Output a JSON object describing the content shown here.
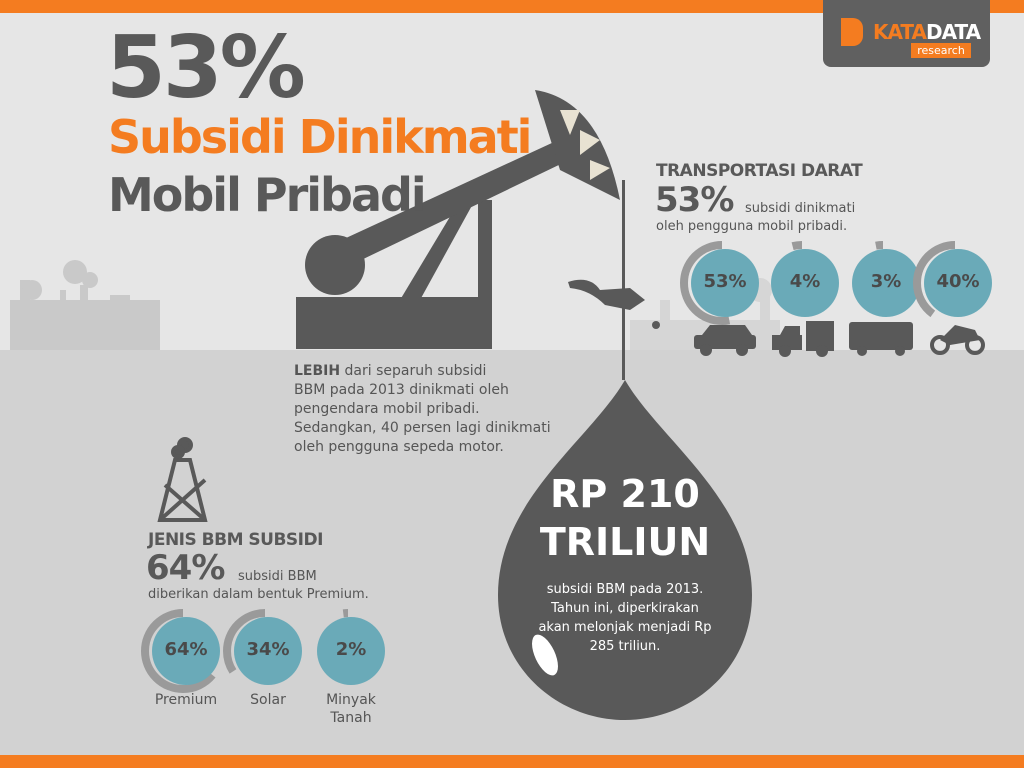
{
  "colors": {
    "orange": "#f47c20",
    "dark": "#595959",
    "teal": "#6aaab8",
    "ring": "#9a9a9a"
  },
  "logo": {
    "brand_a": "KATA",
    "brand_b": "DATA",
    "sub": "research"
  },
  "headline": {
    "percent": "53%",
    "line1": "Subsidi Dinikmati",
    "line2": "Mobil Pribadi"
  },
  "transport": {
    "title": "TRANSPORTASI DARAT",
    "percent": "53%",
    "desc1": "subsidi dinikmati",
    "desc2": "oleh pengguna mobil pribadi.",
    "items": [
      {
        "label": "53%",
        "value": 53,
        "icon": "car-icon"
      },
      {
        "label": "4%",
        "value": 4,
        "icon": "truck-icon"
      },
      {
        "label": "3%",
        "value": 3,
        "icon": "bus-icon"
      },
      {
        "label": "40%",
        "value": 40,
        "icon": "motorcycle-icon"
      }
    ]
  },
  "lebih": {
    "bold": "LEBIH",
    "rest": " dari separuh subsidi",
    "l2": "BBM pada 2013 dinikmati oleh",
    "l3": "pengendara mobil pribadi.",
    "l4": "Sedangkan, 40 persen lagi dinikmati",
    "l5": "oleh pengguna sepeda motor."
  },
  "drop": {
    "amount1": "RP 210",
    "amount2": "TRILIUN",
    "d1": "subsidi BBM pada 2013.",
    "d2": "Tahun ini, diperkirakan",
    "d3": "akan melonjak menjadi Rp",
    "d4": "285 triliun."
  },
  "bbm": {
    "title": "JENIS BBM SUBSIDI",
    "percent": "64%",
    "desc1": "subsidi BBM",
    "desc2": "diberikan dalam bentuk Premium.",
    "items": [
      {
        "label": "64%",
        "value": 64,
        "name": "Premium"
      },
      {
        "label": "34%",
        "value": 34,
        "name": "Solar"
      },
      {
        "label": "2%",
        "value": 2,
        "name": "Minyak Tanah"
      }
    ]
  }
}
